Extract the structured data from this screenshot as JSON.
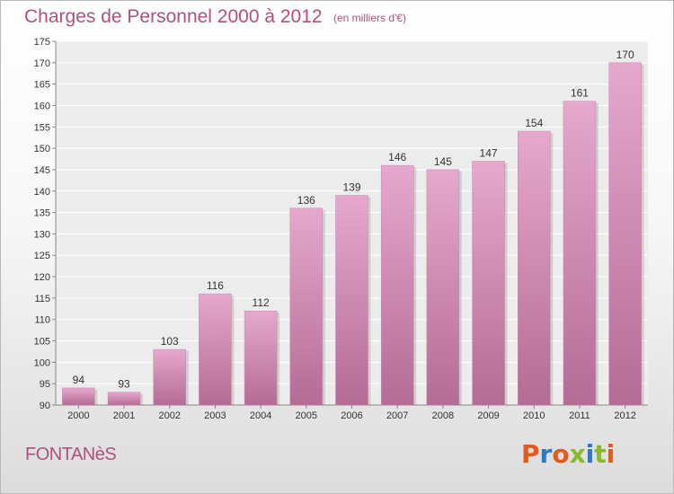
{
  "header": {
    "title": "Charges de Personnel 2000 à 2012",
    "unit": "(en milliers d'€)"
  },
  "footer": {
    "town": "FONTANèS",
    "logo_text": "Proxiti"
  },
  "colors": {
    "accent": "#b0507f",
    "bar_top": "#e6a8cd",
    "bar_bottom": "#b46c95",
    "logo_letters": [
      "#e35a1c",
      "#2e78c8",
      "#e35a1c",
      "#8ab92d",
      "#2e78c8",
      "#8ab92d",
      "#e35a1c"
    ]
  },
  "chart_data": {
    "type": "bar",
    "title": "Charges de Personnel 2000 à 2012",
    "subtitle": "(en milliers d'€)",
    "categories": [
      "2000",
      "2001",
      "2002",
      "2003",
      "2004",
      "2005",
      "2006",
      "2007",
      "2008",
      "2009",
      "2010",
      "2011",
      "2012"
    ],
    "values": [
      94,
      93,
      103,
      116,
      112,
      136,
      139,
      146,
      145,
      147,
      154,
      161,
      170
    ],
    "ylim": [
      90,
      175
    ],
    "yticks": [
      90,
      95,
      100,
      105,
      110,
      115,
      120,
      125,
      130,
      135,
      140,
      145,
      150,
      155,
      160,
      165,
      170,
      175
    ],
    "grid": true,
    "data_labels": true
  }
}
